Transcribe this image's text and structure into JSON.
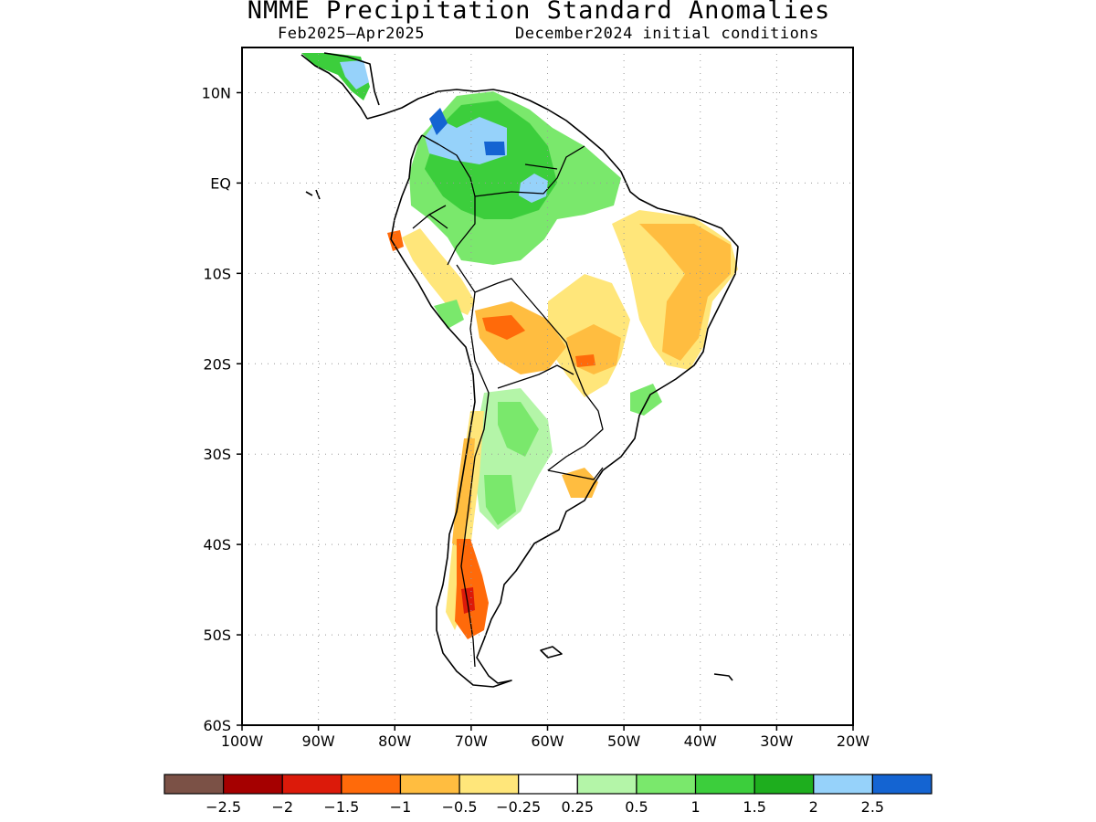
{
  "title": "NMME Precipitation Standard Anomalies",
  "subtitle_period": "Feb2025–Apr2025",
  "subtitle_ic": "December2024 initial conditions",
  "map": {
    "lon_range": [
      -100,
      -20
    ],
    "lat_range": [
      -60,
      15
    ],
    "lat_ticks": [
      "10N",
      "EQ",
      "10S",
      "20S",
      "30S",
      "40S",
      "50S",
      "60S"
    ],
    "lon_ticks": [
      "100W",
      "90W",
      "80W",
      "70W",
      "60W",
      "50W",
      "40W",
      "30W",
      "20W"
    ],
    "grid": "dotted"
  },
  "colorbar": {
    "colors": [
      "#7b5146",
      "#a50000",
      "#dc1a0a",
      "#ff6a0a",
      "#ffbd40",
      "#ffe67a",
      "#ffffff",
      "#b4f5a8",
      "#7ae86c",
      "#3cce3c",
      "#1eae1e",
      "#96d2fa",
      "#1464d2"
    ],
    "labels": [
      "−2.5",
      "−2",
      "−1.5",
      "−1",
      "−0.5",
      "−0.25",
      "0.25",
      "0.5",
      "1",
      "1.5",
      "2",
      "2.5"
    ]
  }
}
